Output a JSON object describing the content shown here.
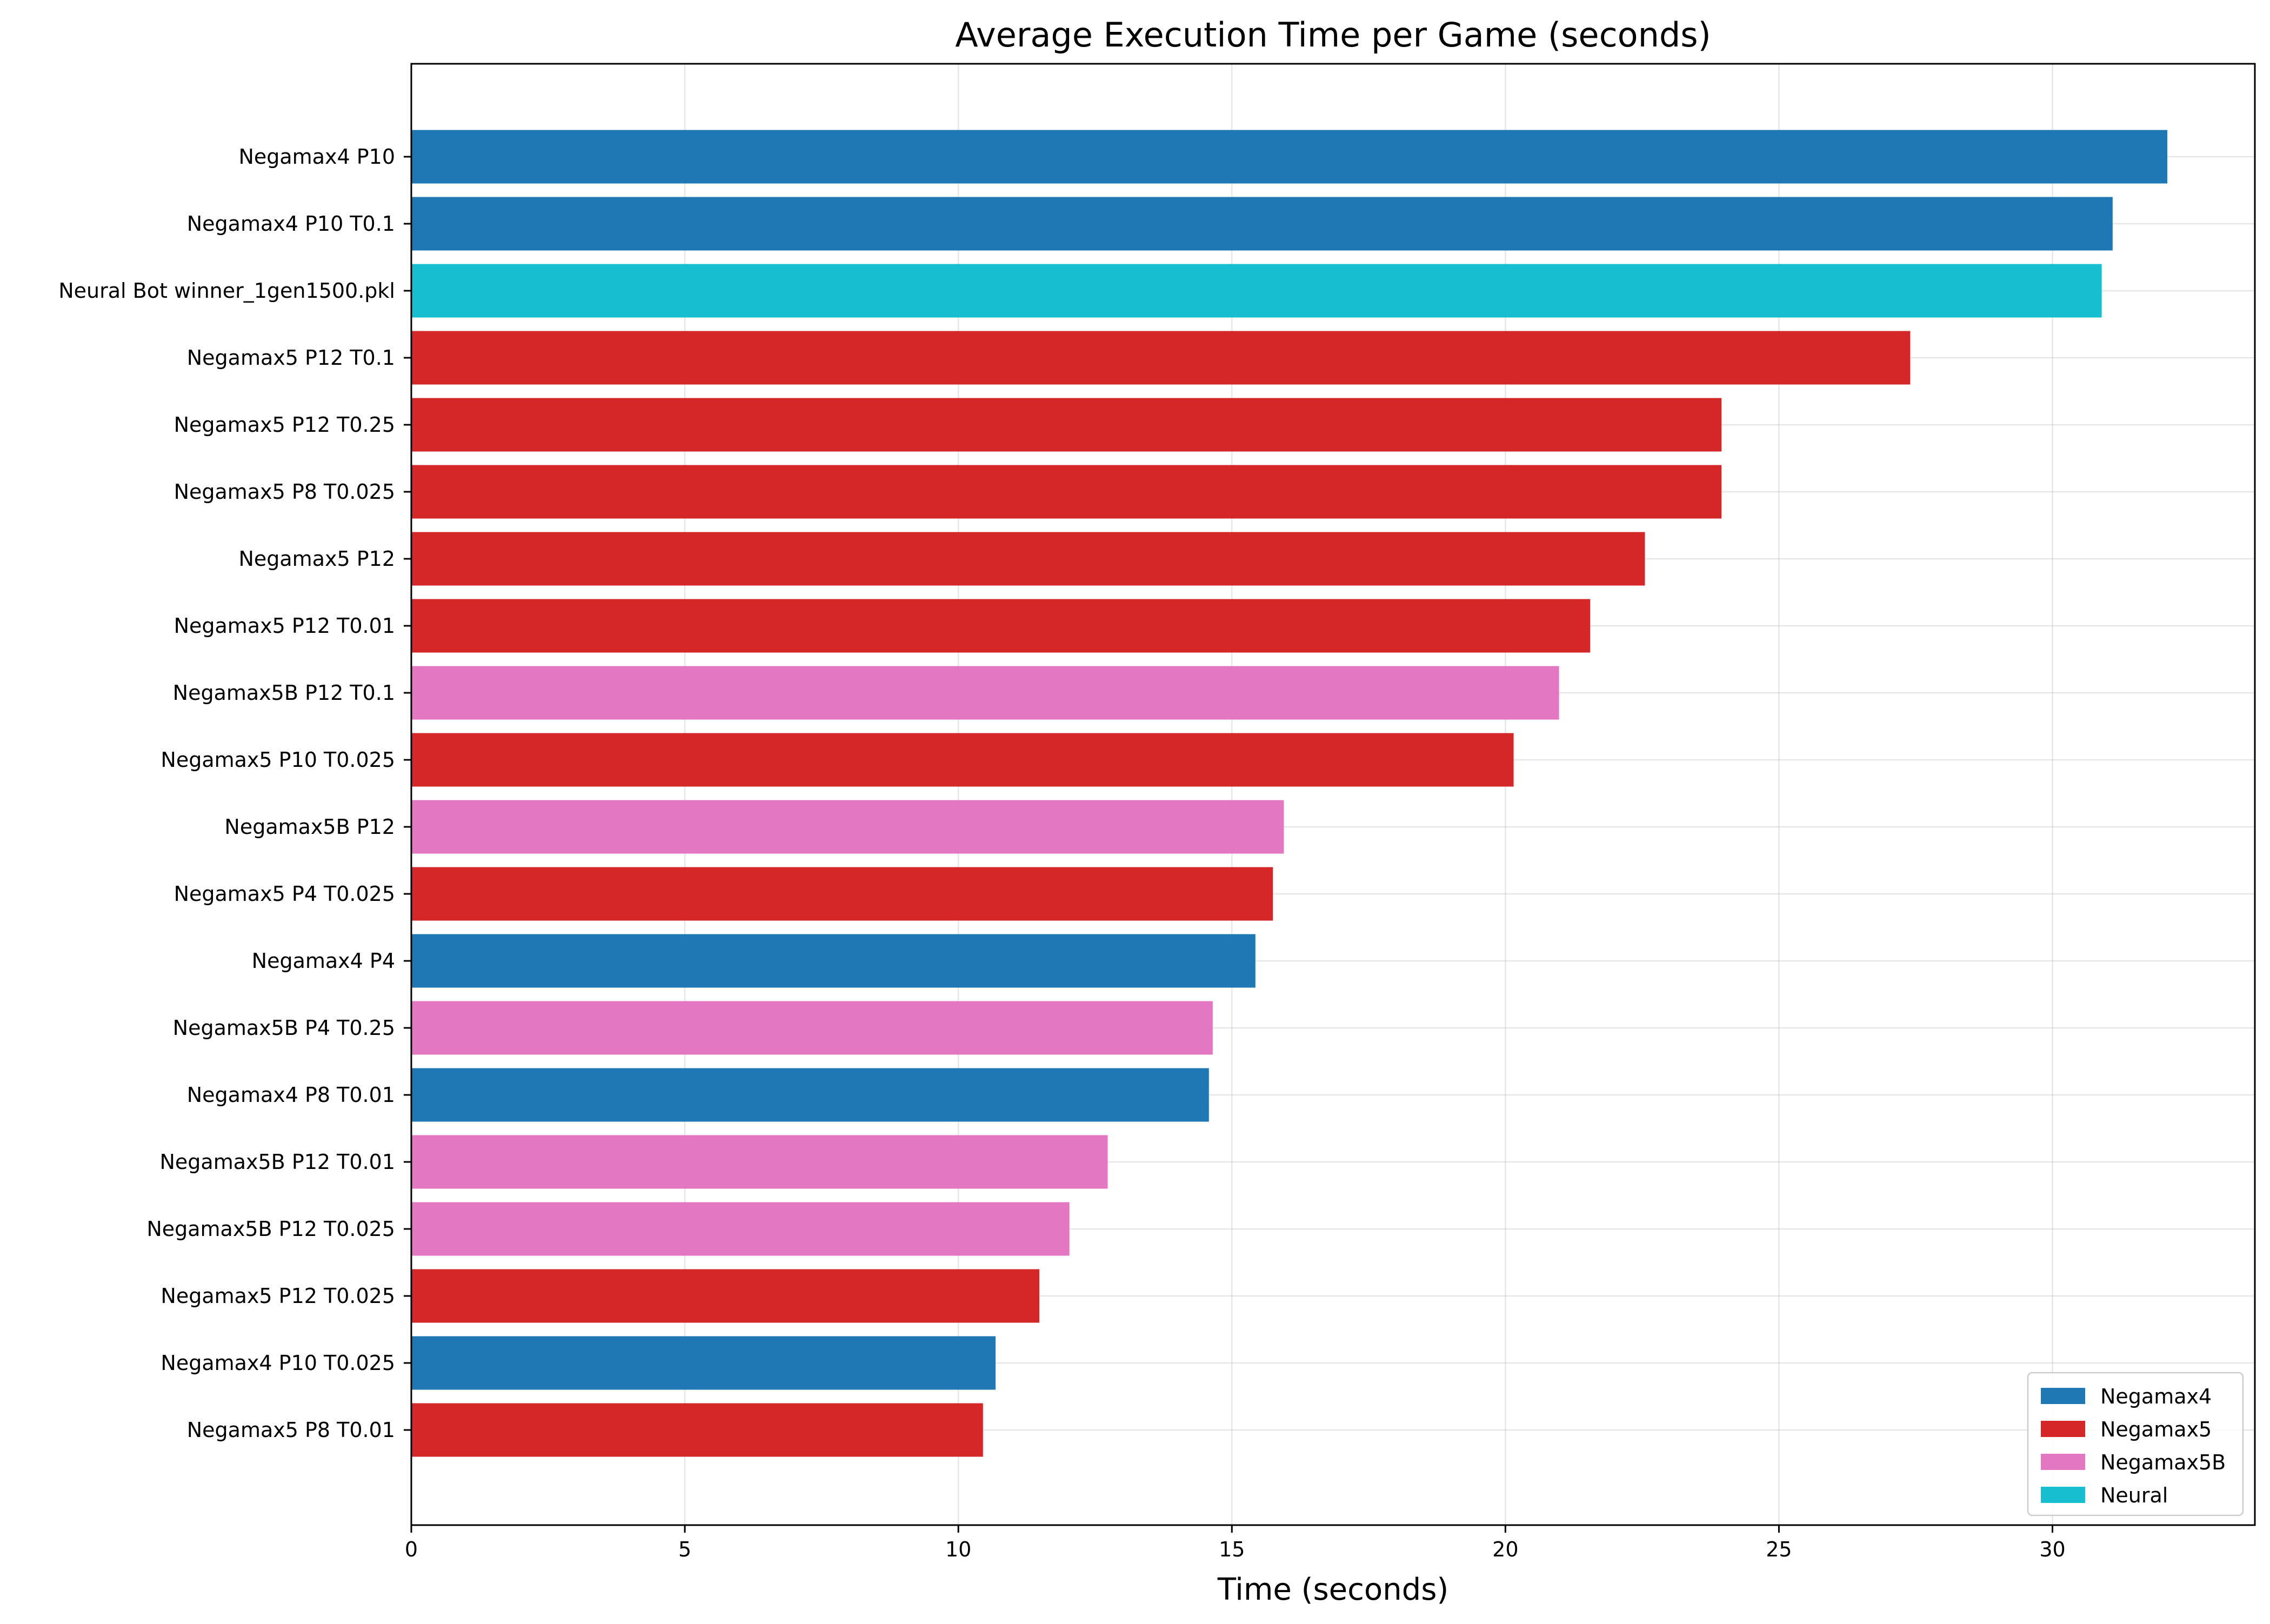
{
  "chart_data": {
    "type": "bar",
    "orientation": "horizontal",
    "title": "Average Execution Time per Game (seconds)",
    "xlabel": "Time (seconds)",
    "ylabel": "",
    "xlim": [
      0,
      33.7
    ],
    "xticks": [
      0,
      5,
      10,
      15,
      20,
      25,
      30
    ],
    "grid": true,
    "legend_position": "bottom-right",
    "categories": [
      "Negamax4 P10",
      "Negamax4 P10 T0.1",
      "Neural Bot winner_1gen1500.pkl",
      "Negamax5 P12 T0.1",
      "Negamax5 P12 T0.25",
      "Negamax5 P8 T0.025",
      "Negamax5 P12",
      "Negamax5 P12 T0.01",
      "Negamax5B P12 T0.1",
      "Negamax5 P10 T0.025",
      "Negamax5B P12",
      "Negamax5 P4 T0.025",
      "Negamax4 P4",
      "Negamax5B P4 T0.25",
      "Negamax4 P8 T0.01",
      "Negamax5B P12 T0.01",
      "Negamax5B P12 T0.025",
      "Negamax5 P12 T0.025",
      "Negamax4 P10 T0.025",
      "Negamax5 P8 T0.01"
    ],
    "values": [
      32.1,
      31.1,
      30.9,
      27.4,
      23.95,
      23.95,
      22.55,
      21.55,
      20.98,
      20.15,
      15.95,
      15.75,
      15.43,
      14.65,
      14.58,
      12.73,
      12.03,
      11.48,
      10.68,
      10.45
    ],
    "groups": [
      "Negamax4",
      "Negamax4",
      "Neural",
      "Negamax5",
      "Negamax5",
      "Negamax5",
      "Negamax5",
      "Negamax5",
      "Negamax5B",
      "Negamax5",
      "Negamax5B",
      "Negamax5",
      "Negamax4",
      "Negamax5B",
      "Negamax4",
      "Negamax5B",
      "Negamax5B",
      "Negamax5",
      "Negamax4",
      "Negamax5"
    ],
    "legend": [
      {
        "name": "Negamax4",
        "color": "#1f77b4"
      },
      {
        "name": "Negamax5",
        "color": "#d62728"
      },
      {
        "name": "Negamax5B",
        "color": "#e377c2"
      },
      {
        "name": "Neural",
        "color": "#17becf"
      }
    ]
  }
}
